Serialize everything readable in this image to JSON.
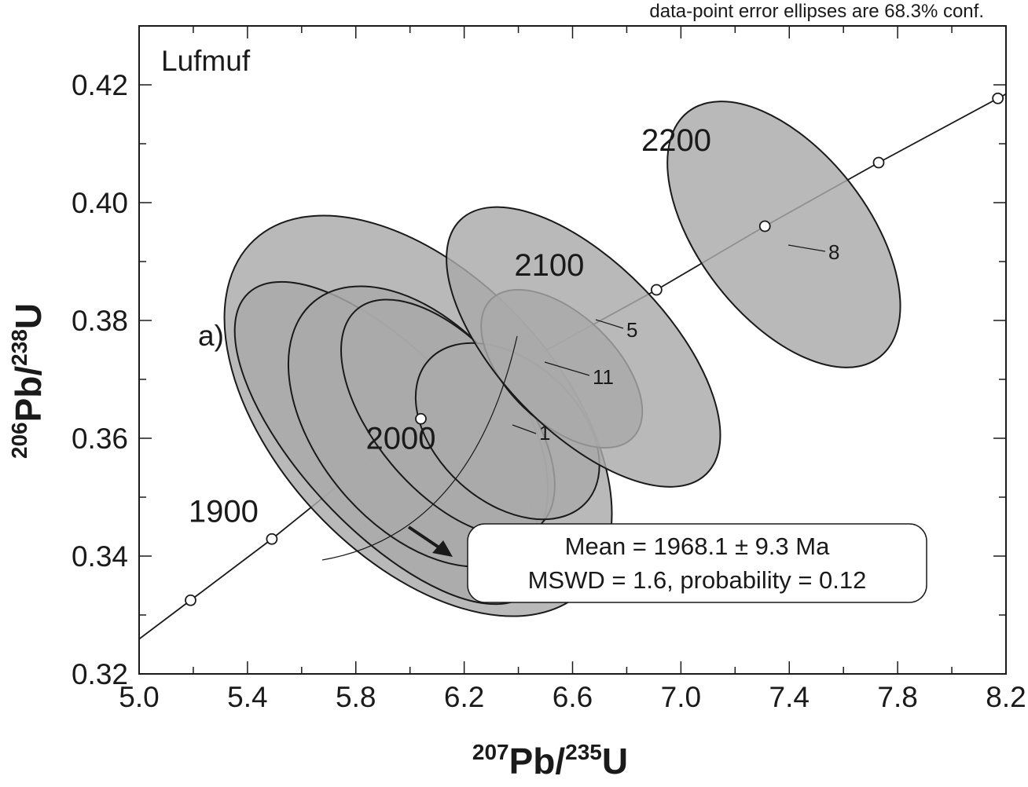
{
  "chart_data": {
    "type": "concordia",
    "note": "data-point error ellipses are 68.3% conf.",
    "sample_label": "Lufmuf",
    "panel_label": "a)",
    "xlabel": {
      "sup1": "207",
      "base1": "Pb/",
      "sup2": "235",
      "base2": "U"
    },
    "ylabel": {
      "sup1": "206",
      "base1": "Pb/",
      "sup2": "238",
      "base2": "U"
    },
    "xlim": [
      5.0,
      8.2
    ],
    "ylim": [
      0.32,
      0.43
    ],
    "x_ticks": [
      "5.0",
      "5.4",
      "5.8",
      "6.2",
      "6.6",
      "7.0",
      "7.4",
      "7.8",
      "8.2"
    ],
    "y_ticks": [
      "0.32",
      "0.34",
      "0.36",
      "0.38",
      "0.40",
      "0.42"
    ],
    "concordia_ages": [
      {
        "age": "",
        "x": 5.19,
        "y": 0.3325
      },
      {
        "age": "1900",
        "x": 5.49,
        "y": 0.3429
      },
      {
        "age": "2000",
        "x": 6.04,
        "y": 0.3633
      },
      {
        "age": "2100",
        "x": 6.91,
        "y": 0.3852
      },
      {
        "age": "",
        "x": 7.31,
        "y": 0.396
      },
      {
        "age": "2200",
        "x": 7.73,
        "y": 0.4068
      },
      {
        "age": "",
        "x": 8.17,
        "y": 0.4177
      }
    ],
    "ellipses": [
      {
        "label": "",
        "cx": 6.03,
        "cy": 0.3638,
        "rx": 0.52,
        "ry": 0.0034,
        "angle_deg": -43
      },
      {
        "label": "",
        "cx": 5.92,
        "cy": 0.3592,
        "rx": 0.32,
        "ry": 0.0029,
        "angle_deg": -43
      },
      {
        "label": "",
        "cx": 6.03,
        "cy": 0.362,
        "rx": 0.37,
        "ry": 0.0023,
        "angle_deg": -40
      },
      {
        "label": "",
        "cx": 6.14,
        "cy": 0.3635,
        "rx": 0.27,
        "ry": 0.002,
        "angle_deg": -40
      },
      {
        "label": "1",
        "cx": 6.36,
        "cy": 0.3612,
        "rx": 0.26,
        "ry": 0.0015,
        "angle_deg": -48
      },
      {
        "label": "11",
        "cx": 6.56,
        "cy": 0.3718,
        "rx": 0.2,
        "ry": 0.0014,
        "angle_deg": -46
      },
      {
        "label": "5",
        "cx": 6.64,
        "cy": 0.3755,
        "rx": 0.31,
        "ry": 0.0025,
        "angle_deg": -44
      },
      {
        "label": "8",
        "cx": 7.38,
        "cy": 0.3946,
        "rx": 0.31,
        "ry": 0.0022,
        "angle_deg": -38
      }
    ],
    "result_box": {
      "line1": "Mean = 1968.1 ± 9.3 Ma",
      "line2": "MSWD = 1.6, probability = 0.12"
    }
  }
}
